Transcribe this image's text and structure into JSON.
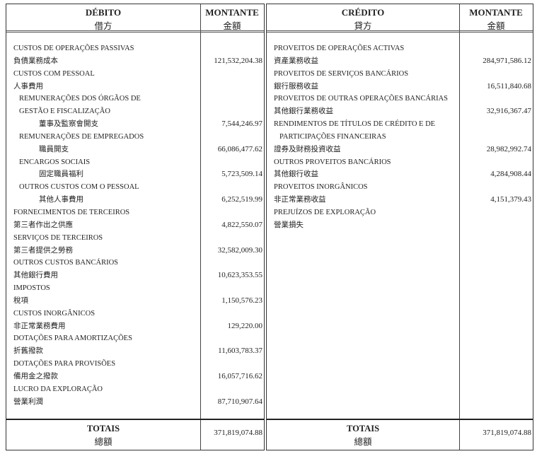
{
  "debit": {
    "header": {
      "title": "DÉBITO",
      "title_zh": "借方",
      "amount": "MONTANTE",
      "amount_zh": "金額"
    },
    "rows": [
      {
        "text": "CUSTOS DE OPERAÇÕES PASSIVAS",
        "indent": 0,
        "amount": ""
      },
      {
        "text": "負債業務成本",
        "indent": 0,
        "amount": "121,532,204.38"
      },
      {
        "text": "CUSTOS COM PESSOAL",
        "indent": 0,
        "amount": ""
      },
      {
        "text": "人事費用",
        "indent": 0,
        "amount": ""
      },
      {
        "text": "REMUNERAÇÕES DOS ÓRGÃOS DE",
        "indent": 1,
        "amount": ""
      },
      {
        "text": "GESTÃO E FISCALIZAÇÃO",
        "indent": 1,
        "amount": ""
      },
      {
        "text": "董事及監察會開支",
        "indent": 2,
        "amount": "7,544,246.97"
      },
      {
        "text": "REMUNERAÇÕES DE EMPREGADOS",
        "indent": 1,
        "amount": ""
      },
      {
        "text": "職員開支",
        "indent": 2,
        "amount": "66,086,477.62"
      },
      {
        "text": "ENCARGOS SOCIAIS",
        "indent": 1,
        "amount": ""
      },
      {
        "text": "固定職員福利",
        "indent": 2,
        "amount": "5,723,509.14"
      },
      {
        "text": "OUTROS CUSTOS COM O PESSOAL",
        "indent": 1,
        "amount": ""
      },
      {
        "text": "其他人事費用",
        "indent": 2,
        "amount": "6,252,519.99"
      },
      {
        "text": "FORNECIMENTOS DE TERCEIROS",
        "indent": 0,
        "amount": ""
      },
      {
        "text": "第三者作出之供應",
        "indent": 0,
        "amount": "4,822,550.07"
      },
      {
        "text": "SERVIÇOS DE TERCEIROS",
        "indent": 0,
        "amount": ""
      },
      {
        "text": "第三者提供之勞務",
        "indent": 0,
        "amount": "32,582,009.30"
      },
      {
        "text": "OUTROS CUSTOS BANCÁRIOS",
        "indent": 0,
        "amount": ""
      },
      {
        "text": "其他銀行費用",
        "indent": 0,
        "amount": "10,623,353.55"
      },
      {
        "text": "IMPOSTOS",
        "indent": 0,
        "amount": ""
      },
      {
        "text": "稅項",
        "indent": 0,
        "amount": "1,150,576.23"
      },
      {
        "text": "CUSTOS INORGÂNICOS",
        "indent": 0,
        "amount": ""
      },
      {
        "text": "非正常業務費用",
        "indent": 0,
        "amount": "129,220.00"
      },
      {
        "text": "DOTAÇÕES PARA AMORTIZAÇÕES",
        "indent": 0,
        "amount": ""
      },
      {
        "text": "折舊撥款",
        "indent": 0,
        "amount": "11,603,783.37"
      },
      {
        "text": "DOTAÇÕES PARA PROVISÕES",
        "indent": 0,
        "amount": ""
      },
      {
        "text": "備用金之撥款",
        "indent": 0,
        "amount": "16,057,716.62"
      },
      {
        "text": "LUCRO DA EXPLORAÇÃO",
        "indent": 0,
        "amount": ""
      },
      {
        "text": "營業利潤",
        "indent": 0,
        "amount": "87,710,907.64"
      }
    ],
    "totals": {
      "label": "TOTAIS",
      "label_zh": "總額",
      "amount": "371,819,074.88"
    }
  },
  "credit": {
    "header": {
      "title": "CRÉDITO",
      "title_zh": "貸方",
      "amount": "MONTANTE",
      "amount_zh": "金額"
    },
    "rows": [
      {
        "text": "PROVEITOS DE OPERAÇÕES ACTIVAS",
        "indent": 0,
        "amount": ""
      },
      {
        "text": "資產業務收益",
        "indent": 0,
        "amount": "284,971,586.12"
      },
      {
        "text": "PROVEITOS DE SERVIÇOS BANCÁRIOS",
        "indent": 0,
        "amount": ""
      },
      {
        "text": "銀行服務收益",
        "indent": 0,
        "amount": "16,511,840.68"
      },
      {
        "text": "PROVEITOS DE OUTRAS OPERAÇÕES BANCÁRIAS",
        "indent": 0,
        "amount": ""
      },
      {
        "text": "其他銀行業務收益",
        "indent": 0,
        "amount": "32,916,367.47"
      },
      {
        "text": "RENDIMENTOS DE TÍTULOS DE CRÉDITO E DE",
        "indent": 0,
        "amount": ""
      },
      {
        "text": "PARTICIPAÇÕES FINANCEIRAS",
        "indent": 1,
        "amount": ""
      },
      {
        "text": "證券及財務投資收益",
        "indent": 0,
        "amount": "28,982,992.74"
      },
      {
        "text": "OUTROS PROVEITOS BANCÁRIOS",
        "indent": 0,
        "amount": ""
      },
      {
        "text": "其他銀行收益",
        "indent": 0,
        "amount": "4,284,908.44"
      },
      {
        "text": "PROVEITOS INORGÂNICOS",
        "indent": 0,
        "amount": ""
      },
      {
        "text": "非正常業務收益",
        "indent": 0,
        "amount": "4,151,379.43"
      },
      {
        "text": "PREJUÍZOS DE EXPLORAÇÃO",
        "indent": 0,
        "amount": ""
      },
      {
        "text": "營業損失",
        "indent": 0,
        "amount": ""
      }
    ],
    "totals": {
      "label": "TOTAIS",
      "label_zh": "總額",
      "amount": "371,819,074.88"
    }
  }
}
